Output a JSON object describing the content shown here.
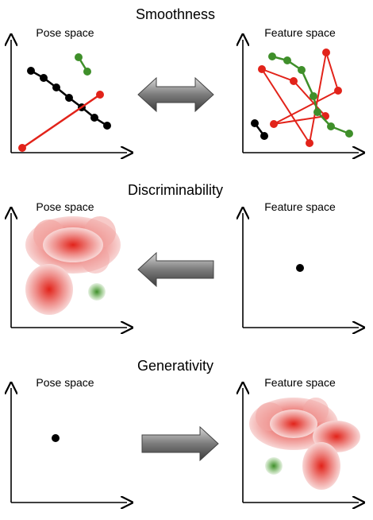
{
  "sections": [
    {
      "title": "Smoothness",
      "left_label": "Pose space",
      "right_label": "Feature space",
      "arrow": "double-arrow"
    },
    {
      "title": "Discriminability",
      "left_label": "Pose space",
      "right_label": "Feature space",
      "arrow": "left-arrow"
    },
    {
      "title": "Generativity",
      "left_label": "Pose space",
      "right_label": "Feature space",
      "arrow": "right-arrow"
    }
  ],
  "colors": {
    "black": "#000000",
    "red": "#e2231a",
    "green": "#3f8f2a",
    "arrow_dark": "#4a4a4a",
    "arrow_light": "#c8c8c8"
  }
}
